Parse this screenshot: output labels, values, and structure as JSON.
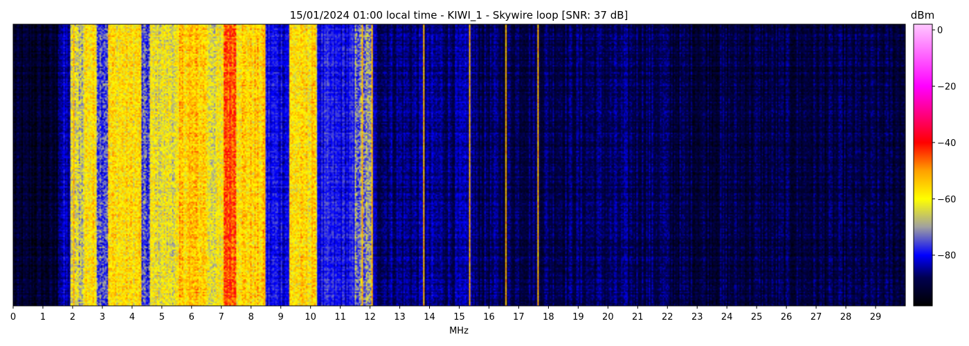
{
  "chart_data": {
    "type": "heatmap",
    "title": "15/01/2024 01:00 local time - KIWI_1 - Skywire loop [SNR: 37 dB]",
    "xlabel": "MHz",
    "ylabel": "",
    "xlim": [
      0,
      30
    ],
    "x_ticks": [
      "0",
      "1",
      "2",
      "3",
      "4",
      "5",
      "6",
      "7",
      "8",
      "9",
      "10",
      "11",
      "12",
      "13",
      "14",
      "15",
      "16",
      "17",
      "18",
      "19",
      "20",
      "21",
      "22",
      "23",
      "24",
      "25",
      "26",
      "27",
      "28",
      "29"
    ],
    "colorbar": {
      "label": "dBm",
      "range": [
        -98,
        2
      ],
      "ticks": [
        "0",
        "−20",
        "−40",
        "−60",
        "−80"
      ],
      "tick_values": [
        0,
        -20,
        -40,
        -60,
        -80
      ],
      "colormap": [
        {
          "v": -98,
          "color": "#000000"
        },
        {
          "v": -88,
          "color": "#000050"
        },
        {
          "v": -80,
          "color": "#0000ff"
        },
        {
          "v": -70,
          "color": "#a0a0a0"
        },
        {
          "v": -60,
          "color": "#ffff00"
        },
        {
          "v": -50,
          "color": "#ffa000"
        },
        {
          "v": -40,
          "color": "#ff0000"
        },
        {
          "v": -20,
          "color": "#ff00ff"
        },
        {
          "v": 2,
          "color": "#ffc8ff"
        }
      ]
    },
    "band_levels_dbm": [
      {
        "from": 0.0,
        "to": 1.5,
        "dbm": -93
      },
      {
        "from": 1.5,
        "to": 1.9,
        "dbm": -84
      },
      {
        "from": 1.9,
        "to": 2.4,
        "dbm": -66
      },
      {
        "from": 2.4,
        "to": 2.8,
        "dbm": -58
      },
      {
        "from": 2.8,
        "to": 3.2,
        "dbm": -74
      },
      {
        "from": 3.2,
        "to": 4.3,
        "dbm": -58
      },
      {
        "from": 4.3,
        "to": 4.6,
        "dbm": -76
      },
      {
        "from": 4.6,
        "to": 5.6,
        "dbm": -62
      },
      {
        "from": 5.6,
        "to": 6.5,
        "dbm": -55
      },
      {
        "from": 6.5,
        "to": 7.1,
        "dbm": -62
      },
      {
        "from": 7.1,
        "to": 7.5,
        "dbm": -44
      },
      {
        "from": 7.5,
        "to": 8.5,
        "dbm": -56
      },
      {
        "from": 8.5,
        "to": 9.3,
        "dbm": -80
      },
      {
        "from": 9.3,
        "to": 10.2,
        "dbm": -58
      },
      {
        "from": 10.2,
        "to": 11.5,
        "dbm": -80
      },
      {
        "from": 11.5,
        "to": 12.1,
        "dbm": -72
      },
      {
        "from": 12.1,
        "to": 15.5,
        "dbm": -86
      },
      {
        "from": 15.5,
        "to": 22.0,
        "dbm": -88
      },
      {
        "from": 22.0,
        "to": 30.0,
        "dbm": -90
      }
    ],
    "strong_carriers_mhz": [
      2.05,
      5.95,
      7.2,
      7.35,
      8.45,
      10.05,
      11.75,
      12.05,
      13.8,
      15.35,
      16.55,
      17.65
    ]
  }
}
